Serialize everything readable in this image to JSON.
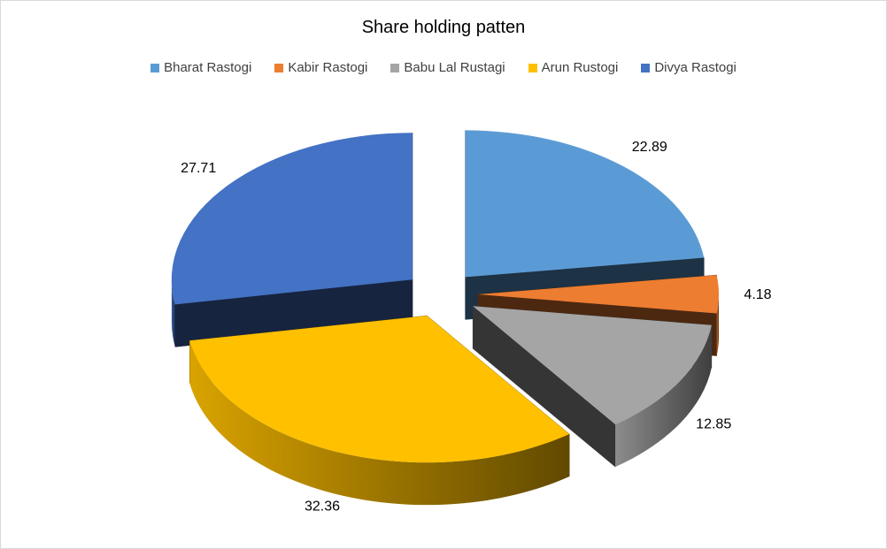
{
  "chart_data": {
    "type": "pie",
    "title": "Share holding patten",
    "categories": [
      "Bharat Rastogi",
      "Kabir Rastogi",
      "Babu Lal Rustagi",
      "Arun Rustogi",
      "Divya Rastogi"
    ],
    "values": [
      22.89,
      4.18,
      12.85,
      32.36,
      27.71
    ],
    "data_labels": [
      "22.89",
      "4.18",
      "12.85",
      "32.36",
      "27.71"
    ],
    "colors": [
      "#5b9bd5",
      "#ed7d31",
      "#a5a5a5",
      "#ffc000",
      "#4472c4"
    ],
    "exploded": true,
    "three_d": true,
    "legend_position": "top"
  }
}
